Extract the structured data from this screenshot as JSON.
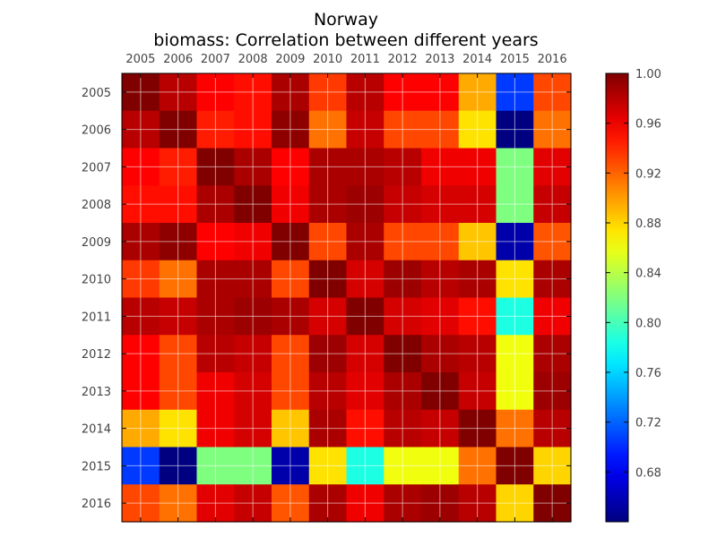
{
  "chart_data": {
    "type": "heatmap",
    "title": "Norway",
    "subtitle": "biomass: Correlation between different years",
    "years": [
      "2005",
      "2006",
      "2007",
      "2008",
      "2009",
      "2010",
      "2011",
      "2012",
      "2013",
      "2014",
      "2015",
      "2016"
    ],
    "matrix": [
      [
        1.0,
        0.98,
        0.955,
        0.95,
        0.985,
        0.935,
        0.98,
        0.955,
        0.955,
        0.895,
        0.705,
        0.93
      ],
      [
        0.98,
        1.0,
        0.945,
        0.95,
        0.995,
        0.915,
        0.975,
        0.93,
        0.93,
        0.875,
        0.64,
        0.915
      ],
      [
        0.955,
        0.945,
        1.0,
        0.985,
        0.955,
        0.985,
        0.985,
        0.98,
        0.96,
        0.96,
        0.82,
        0.965
      ],
      [
        0.95,
        0.95,
        0.985,
        1.0,
        0.96,
        0.985,
        0.99,
        0.975,
        0.97,
        0.97,
        0.82,
        0.975
      ],
      [
        0.985,
        0.995,
        0.955,
        0.96,
        1.0,
        0.93,
        0.985,
        0.93,
        0.93,
        0.885,
        0.655,
        0.925
      ],
      [
        0.935,
        0.915,
        0.985,
        0.985,
        0.93,
        1.0,
        0.97,
        0.99,
        0.98,
        0.985,
        0.875,
        0.985
      ],
      [
        0.98,
        0.975,
        0.985,
        0.99,
        0.985,
        0.97,
        1.0,
        0.97,
        0.965,
        0.95,
        0.785,
        0.96
      ],
      [
        0.955,
        0.93,
        0.98,
        0.975,
        0.93,
        0.99,
        0.97,
        1.0,
        0.985,
        0.98,
        0.86,
        0.985
      ],
      [
        0.955,
        0.93,
        0.96,
        0.97,
        0.93,
        0.98,
        0.965,
        0.985,
        1.0,
        0.975,
        0.86,
        0.99
      ],
      [
        0.895,
        0.875,
        0.96,
        0.97,
        0.885,
        0.985,
        0.95,
        0.98,
        0.975,
        1.0,
        0.915,
        0.98
      ],
      [
        0.705,
        0.64,
        0.82,
        0.82,
        0.655,
        0.875,
        0.785,
        0.86,
        0.86,
        0.915,
        1.0,
        0.88
      ],
      [
        0.93,
        0.915,
        0.965,
        0.975,
        0.925,
        0.985,
        0.96,
        0.985,
        0.99,
        0.98,
        0.88,
        1.0
      ]
    ],
    "colorbar": {
      "min": 0.64,
      "max": 1.0,
      "ticks": [
        "0.68",
        "0.72",
        "0.76",
        "0.80",
        "0.84",
        "0.88",
        "0.92",
        "0.96",
        "1.00"
      ]
    },
    "colormap": "jet",
    "grid": true
  }
}
